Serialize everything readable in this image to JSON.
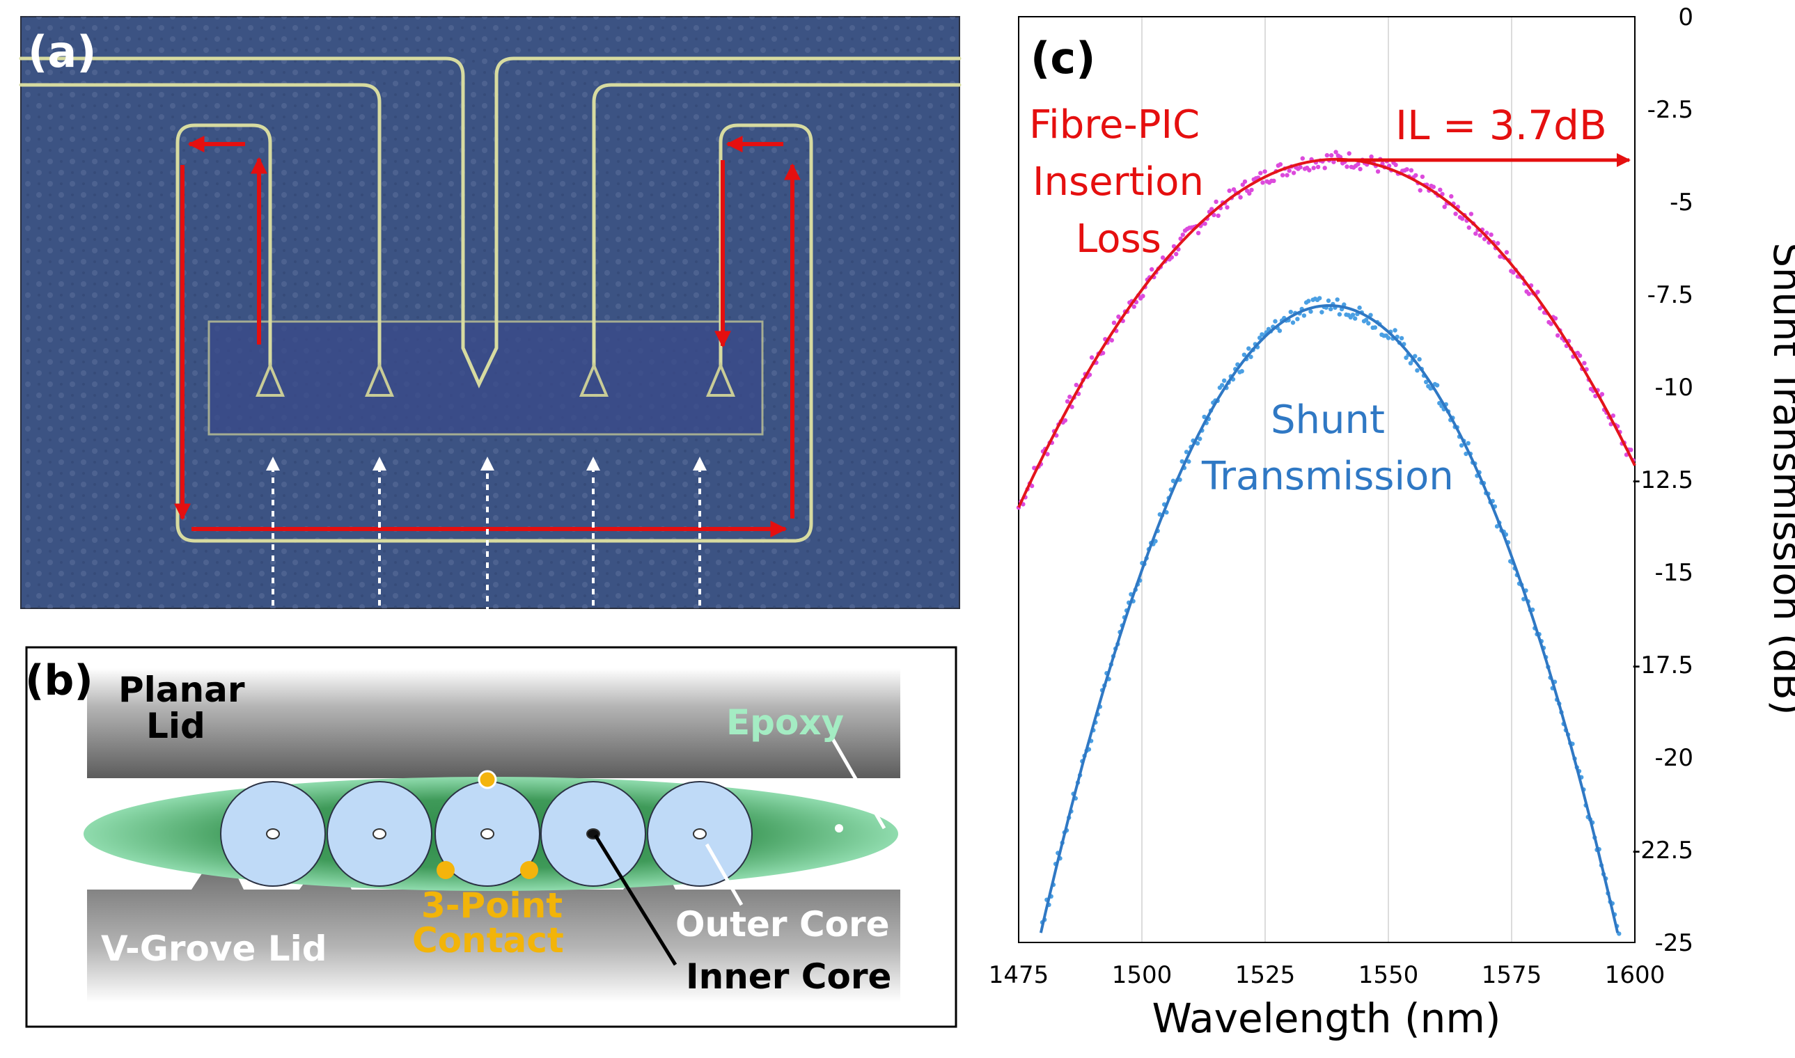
{
  "colors": {
    "micro_bg": "#3c5383",
    "waveguide": "#d7dba0",
    "arrow_red": "#e50f0f",
    "fit_red": "#e4141b",
    "dots_magenta": "#dc4adc",
    "blue_line": "#2f78c4",
    "dots_blue": "#4a9fe3",
    "fiber_fill": "#bfdaf7",
    "epoxy_light": "#a4ecc3",
    "epoxy_dark": "#2e8a48",
    "contact_orange": "#f4b40c",
    "label_orange": "#f2b409"
  },
  "panel_a": {
    "tag": "(a)"
  },
  "panel_b": {
    "tag": "(b)",
    "planar_lid": [
      "Planar",
      "Lid"
    ],
    "vgroove_lid": "V-Grove Lid",
    "epoxy": "Epoxy",
    "contact": [
      "3-Point",
      "Contact"
    ],
    "outer_core": "Outer Core",
    "inner_core": "Inner Core"
  },
  "panel_c": {
    "tag": "(c)"
  },
  "chart_data": {
    "type": "scatter",
    "xlabel": "Wavelength (nm)",
    "ylabel": "Shunt Transmission (dB)",
    "xlim": [
      1475,
      1600
    ],
    "ylim": [
      -25,
      0
    ],
    "x_ticks": [
      1475,
      1500,
      1525,
      1550,
      1575,
      1600
    ],
    "y_ticks": [
      0,
      -2.5,
      -5,
      -7.5,
      -10,
      -12.5,
      -15,
      -17.5,
      -20,
      -22.5,
      -25
    ],
    "x_tick_labels": [
      "1475",
      "1500",
      "1525",
      "1550",
      "1575",
      "1600"
    ],
    "y_tick_labels": [
      "0",
      "-2.5",
      "-5",
      "-7.5",
      "-10",
      "-12.5",
      "-15",
      "-17.5",
      "-20",
      "-22.5",
      "-25"
    ],
    "grid": "vertical",
    "series": [
      {
        "name": "Fibre-PIC Insertion Loss",
        "label_lines": [
          "Fibre-PIC",
          "Insertion",
          "Loss"
        ],
        "fit": {
          "center": 1539.5,
          "peak": -3.85,
          "curvature": 0.00226
        },
        "x_range": [
          1475,
          1600
        ]
      },
      {
        "name": "Shunt Transmission",
        "label_lines": [
          "Shunt",
          "Transmission"
        ],
        "fit": {
          "center": 1538.0,
          "peak": -7.8,
          "curvature": 0.00495
        },
        "x_range": [
          1478,
          1597
        ]
      }
    ],
    "annotation": {
      "text": "IL = 3.7dB",
      "y_value": -3.85
    }
  }
}
